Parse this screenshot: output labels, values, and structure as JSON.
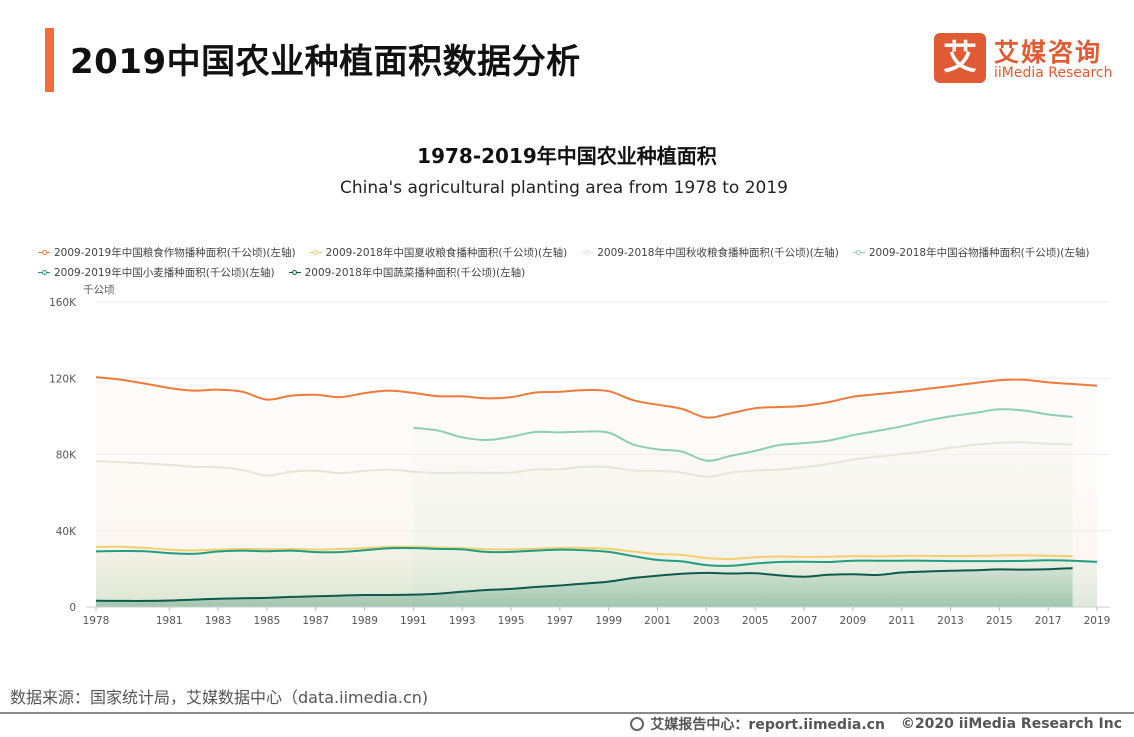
{
  "header": {
    "title": "2019中国农业种植面积数据分析",
    "accent_color": "#f26b3a"
  },
  "logo": {
    "mark": "艾",
    "name_cn": "艾媒咨询",
    "name_en": "iiMedia Research",
    "color": "#e05a33"
  },
  "chart_data": {
    "type": "area",
    "title": "1978-2019年中国农业种植面积",
    "subtitle": "China's agricultural planting area from 1978 to 2019",
    "xlabel": "",
    "ylabel": "千公顷",
    "ylim": [
      0,
      160000
    ],
    "yticks": [
      0,
      40000,
      80000,
      120000,
      160000
    ],
    "ytick_labels": [
      "0",
      "40K",
      "80K",
      "120K",
      "160K"
    ],
    "xlim": [
      1978,
      2019
    ],
    "xtick_labels": [
      "1978",
      "1981",
      "1983",
      "1985",
      "1987",
      "1989",
      "1991",
      "1993",
      "1995",
      "1997",
      "1999",
      "2001",
      "2003",
      "2005",
      "2007",
      "2009",
      "2011",
      "2013",
      "2015",
      "2017",
      "2019"
    ],
    "grid": true,
    "legend_position": "top-left",
    "series": [
      {
        "name": "2009-2019年中国粮食作物播种面积(千公顷)(左轴)",
        "color": "#f07a3a",
        "x": [
          1978,
          1979,
          1980,
          1981,
          1982,
          1983,
          1984,
          1985,
          1986,
          1987,
          1988,
          1989,
          1990,
          1991,
          1992,
          1993,
          1994,
          1995,
          1996,
          1997,
          1998,
          1999,
          2000,
          2001,
          2002,
          2003,
          2004,
          2005,
          2006,
          2007,
          2008,
          2009,
          2010,
          2011,
          2012,
          2013,
          2014,
          2015,
          2016,
          2017,
          2018,
          2019
        ],
        "values": [
          120600,
          119300,
          117200,
          114900,
          113500,
          114000,
          112900,
          108800,
          110900,
          111300,
          110100,
          112200,
          113500,
          112300,
          110600,
          110500,
          109500,
          110100,
          112500,
          112900,
          113800,
          113200,
          108500,
          106100,
          103900,
          99400,
          101600,
          104300,
          104900,
          105600,
          107500,
          110300,
          111700,
          112900,
          114400,
          115900,
          117500,
          119000,
          119200,
          117800,
          117000,
          116100
        ]
      },
      {
        "name": "2009-2018年中国夏收粮食播种面积(千公顷)(左轴)",
        "color": "#f5cf6e",
        "x": [
          1978,
          1979,
          1980,
          1981,
          1982,
          1983,
          1984,
          1985,
          1986,
          1987,
          1988,
          1989,
          1990,
          1991,
          1992,
          1993,
          1994,
          1995,
          1996,
          1997,
          1998,
          1999,
          2000,
          2001,
          2002,
          2003,
          2004,
          2005,
          2006,
          2007,
          2008,
          2009,
          2010,
          2011,
          2012,
          2013,
          2014,
          2015,
          2016,
          2017,
          2018
        ],
        "values": [
          31500,
          31600,
          31000,
          30100,
          29700,
          30100,
          30500,
          30300,
          30400,
          30100,
          30400,
          30900,
          31500,
          31600,
          31200,
          30900,
          30300,
          30200,
          30600,
          31000,
          31000,
          30500,
          29100,
          27800,
          27300,
          25700,
          25200,
          26100,
          26500,
          26300,
          26400,
          26700,
          26600,
          26800,
          26800,
          26700,
          26800,
          27000,
          27100,
          26900,
          26600
        ]
      },
      {
        "name": "2009-2018年中国秋收粮食播种面积(千公顷)(左轴)",
        "color": "#e3e6d8",
        "x": [
          1978,
          1979,
          1980,
          1981,
          1982,
          1983,
          1984,
          1985,
          1986,
          1987,
          1988,
          1989,
          1990,
          1991,
          1992,
          1993,
          1994,
          1995,
          1996,
          1997,
          1998,
          1999,
          2000,
          2001,
          2002,
          2003,
          2004,
          2005,
          2006,
          2007,
          2008,
          2009,
          2010,
          2011,
          2012,
          2013,
          2014,
          2015,
          2016,
          2017,
          2018
        ],
        "values": [
          76500,
          76000,
          75300,
          74600,
          73500,
          73300,
          71800,
          69000,
          70900,
          71500,
          70300,
          71400,
          72100,
          71000,
          70300,
          70500,
          70400,
          70500,
          72200,
          72200,
          73500,
          73400,
          71600,
          71400,
          70500,
          68300,
          70500,
          71600,
          72100,
          73300,
          75000,
          77300,
          78800,
          80300,
          81700,
          83500,
          85100,
          86100,
          86300,
          85600,
          85300
        ]
      },
      {
        "name": "2009-2018年中国谷物播种面积(千公顷)(左轴)",
        "color": "#8ccfb4",
        "x": [
          1991,
          1992,
          1993,
          1994,
          1995,
          1996,
          1997,
          1998,
          1999,
          2000,
          2001,
          2002,
          2003,
          2004,
          2005,
          2006,
          2007,
          2008,
          2009,
          2010,
          2011,
          2012,
          2013,
          2014,
          2015,
          2016,
          2017,
          2018
        ],
        "values": [
          94000,
          92600,
          89000,
          87600,
          89300,
          91800,
          91600,
          92000,
          91500,
          85300,
          82700,
          81500,
          76800,
          79300,
          81900,
          85000,
          86000,
          87300,
          90100,
          92400,
          94800,
          97700,
          100000,
          101800,
          103700,
          103100,
          101000,
          99700
        ]
      },
      {
        "name": "2009-2019年中国小麦播种面积(千公顷)(左轴)",
        "color": "#1f9e82",
        "x": [
          1978,
          1979,
          1980,
          1981,
          1982,
          1983,
          1984,
          1985,
          1986,
          1987,
          1988,
          1989,
          1990,
          1991,
          1992,
          1993,
          1994,
          1995,
          1996,
          1997,
          1998,
          1999,
          2000,
          2001,
          2002,
          2003,
          2004,
          2005,
          2006,
          2007,
          2008,
          2009,
          2010,
          2011,
          2012,
          2013,
          2014,
          2015,
          2016,
          2017,
          2018,
          2019
        ],
        "values": [
          29200,
          29400,
          29200,
          28300,
          27900,
          29100,
          29600,
          29200,
          29600,
          28800,
          28800,
          29800,
          30800,
          30900,
          30500,
          30200,
          28900,
          28900,
          29600,
          30100,
          29800,
          28900,
          26700,
          24700,
          23900,
          22000,
          21600,
          22800,
          23600,
          23700,
          23600,
          24300,
          24300,
          24300,
          24300,
          24100,
          24100,
          24100,
          24200,
          24500,
          24300,
          23700
        ]
      },
      {
        "name": "2009-2018年中国蔬菜播种面积(千公顷)(左轴)",
        "color": "#0f5a4e",
        "x": [
          1978,
          1979,
          1980,
          1981,
          1982,
          1983,
          1984,
          1985,
          1986,
          1987,
          1988,
          1989,
          1990,
          1991,
          1992,
          1993,
          1994,
          1995,
          1996,
          1997,
          1998,
          1999,
          2000,
          2001,
          2002,
          2003,
          2004,
          2005,
          2006,
          2007,
          2008,
          2009,
          2010,
          2011,
          2012,
          2013,
          2014,
          2015,
          2016,
          2017,
          2018
        ],
        "values": [
          3300,
          3200,
          3200,
          3400,
          3900,
          4300,
          4600,
          4800,
          5300,
          5600,
          6000,
          6300,
          6300,
          6500,
          7000,
          8000,
          8900,
          9500,
          10500,
          11300,
          12300,
          13300,
          15200,
          16400,
          17400,
          17900,
          17600,
          17700,
          16600,
          15900,
          16900,
          17200,
          16800,
          18100,
          18600,
          19000,
          19300,
          19700,
          19600,
          19800,
          20400
        ]
      }
    ]
  },
  "source": "数据来源：国家统计局，艾媒数据中心（data.iimedia.cn)",
  "footer": {
    "report_center": "艾媒报告中心：report.iimedia.cn",
    "copyright": "©2020  iiMedia Research  Inc"
  }
}
